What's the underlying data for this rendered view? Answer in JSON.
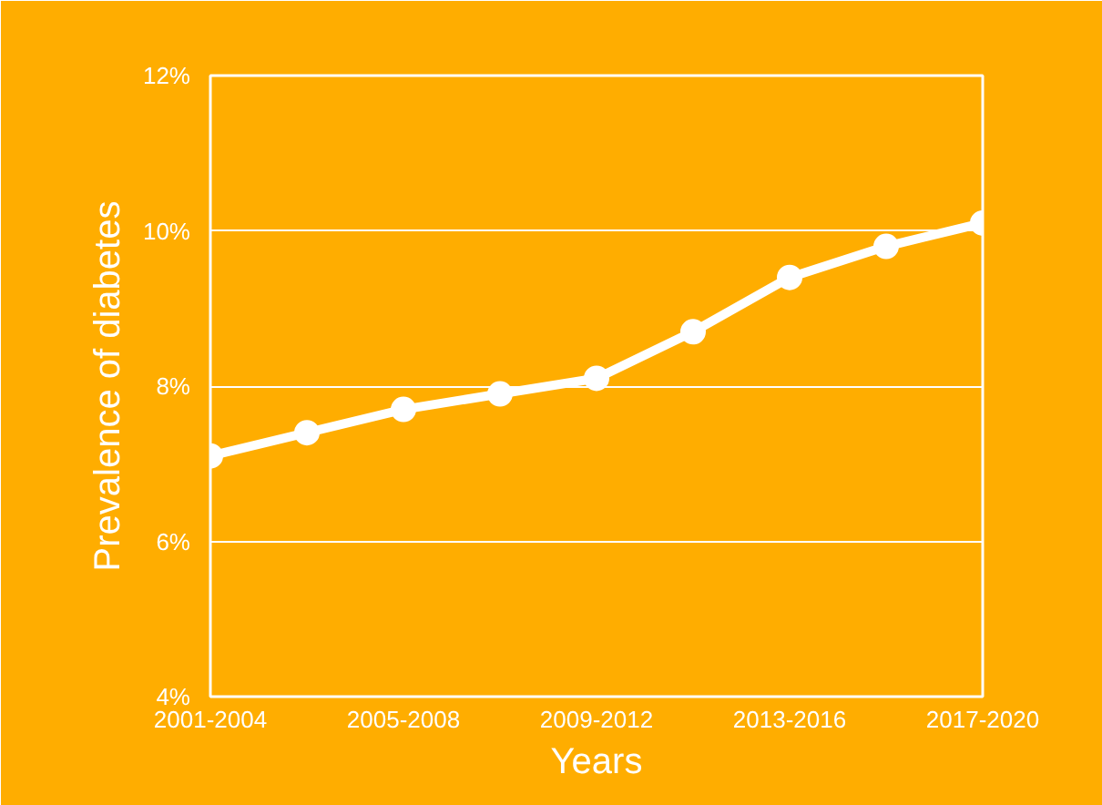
{
  "chart_data": {
    "type": "line",
    "xlabel": "Years",
    "ylabel": "Prevalence of diabetes",
    "categories": [
      "2001-2004",
      null,
      "2005-2008",
      null,
      "2009-2012",
      null,
      "2013-2016",
      null,
      "2017-2020"
    ],
    "series": [
      {
        "color": "#ffffff",
        "values": [
          7.1,
          7.4,
          7.7,
          7.9,
          8.1,
          8.7,
          9.4,
          9.8,
          10.1
        ]
      }
    ],
    "ylim": [
      4,
      12
    ],
    "yticks": [
      {
        "value": 4,
        "label": "4%"
      },
      {
        "value": 6,
        "label": "6%"
      },
      {
        "value": 8,
        "label": "8%"
      },
      {
        "value": 10,
        "label": "10%"
      },
      {
        "value": 12,
        "label": "12%"
      }
    ],
    "grid": "y",
    "marker": "circle",
    "line_style": "solid"
  }
}
